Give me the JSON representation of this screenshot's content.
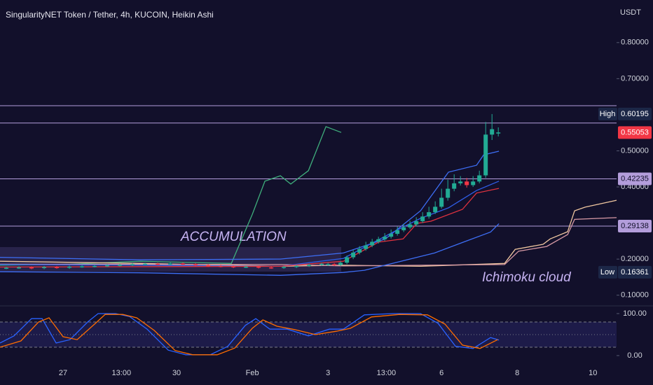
{
  "chart_data": [
    {
      "type": "candlestick",
      "title": "SingularityNET Token / Tether, 4h, KUCOIN, Heikin Ashi",
      "unit": "USDT",
      "annotations": [
        "ACCUMULATION",
        "Ichimoku cloud"
      ],
      "xlim": [
        -40,
        351
      ],
      "ylim": [
        0.08,
        0.918
      ],
      "yticks": [
        {
          "value": 0.8,
          "label": "0.80000"
        },
        {
          "value": 0.7,
          "label": "0.70000"
        },
        {
          "value": 0.5,
          "label": "0.50000"
        },
        {
          "value": 0.4,
          "label": "0.40000"
        },
        {
          "value": 0.2,
          "label": "0.20000"
        },
        {
          "value": 0.1,
          "label": "0.10000"
        }
      ],
      "xticks": [
        {
          "value": 0,
          "label": "27"
        },
        {
          "value": 37,
          "label": "13:00"
        },
        {
          "value": 72,
          "label": "30"
        },
        {
          "value": 120,
          "label": "Feb"
        },
        {
          "value": 168,
          "label": "3"
        },
        {
          "value": 205,
          "label": "13:00"
        },
        {
          "value": 240,
          "label": "6"
        },
        {
          "value": 288,
          "label": "8"
        },
        {
          "value": 336,
          "label": "10"
        }
      ],
      "up_color": "#22ab94",
      "down_color": "#f23645",
      "candles": {
        "x": [
          -36,
          -28,
          -20,
          -12,
          -4,
          4,
          12,
          20,
          28,
          36,
          44,
          52,
          60,
          68,
          76,
          84,
          92,
          100,
          108,
          116,
          124,
          132,
          140,
          148,
          156,
          164,
          168,
          172,
          176,
          180,
          184,
          188,
          192,
          196,
          200,
          204,
          208,
          212,
          216,
          220,
          224,
          228,
          232,
          236,
          240,
          244,
          248,
          252,
          256,
          260,
          264,
          268,
          272,
          276
        ],
        "open": [
          0.175,
          0.176,
          0.177,
          0.175,
          0.178,
          0.176,
          0.179,
          0.18,
          0.181,
          0.183,
          0.184,
          0.186,
          0.187,
          0.186,
          0.188,
          0.186,
          0.183,
          0.181,
          0.18,
          0.178,
          0.179,
          0.177,
          0.176,
          0.178,
          0.181,
          0.184,
          0.184,
          0.186,
          0.184,
          0.19,
          0.205,
          0.218,
          0.228,
          0.238,
          0.248,
          0.255,
          0.262,
          0.27,
          0.28,
          0.288,
          0.296,
          0.305,
          0.318,
          0.33,
          0.345,
          0.37,
          0.395,
          0.41,
          0.415,
          0.405,
          0.415,
          0.432,
          0.545,
          0.548
        ],
        "high": [
          0.179,
          0.18,
          0.18,
          0.181,
          0.181,
          0.182,
          0.183,
          0.184,
          0.186,
          0.187,
          0.189,
          0.19,
          0.19,
          0.191,
          0.191,
          0.189,
          0.186,
          0.184,
          0.183,
          0.182,
          0.182,
          0.18,
          0.181,
          0.184,
          0.187,
          0.19,
          0.19,
          0.189,
          0.194,
          0.21,
          0.225,
          0.236,
          0.248,
          0.256,
          0.262,
          0.272,
          0.282,
          0.29,
          0.298,
          0.306,
          0.316,
          0.33,
          0.345,
          0.36,
          0.395,
          0.42,
          0.435,
          0.43,
          0.425,
          0.43,
          0.445,
          0.58,
          0.60195,
          0.565
        ],
        "low": [
          0.172,
          0.173,
          0.172,
          0.172,
          0.173,
          0.173,
          0.176,
          0.177,
          0.178,
          0.18,
          0.181,
          0.183,
          0.183,
          0.183,
          0.183,
          0.18,
          0.178,
          0.177,
          0.175,
          0.175,
          0.174,
          0.173,
          0.173,
          0.175,
          0.178,
          0.181,
          0.181,
          0.181,
          0.181,
          0.186,
          0.2,
          0.213,
          0.223,
          0.233,
          0.243,
          0.25,
          0.257,
          0.265,
          0.275,
          0.283,
          0.291,
          0.3,
          0.312,
          0.325,
          0.34,
          0.362,
          0.388,
          0.404,
          0.398,
          0.4,
          0.41,
          0.425,
          0.53,
          0.54
        ],
        "close": [
          0.176,
          0.177,
          0.175,
          0.178,
          0.176,
          0.179,
          0.18,
          0.181,
          0.183,
          0.184,
          0.186,
          0.187,
          0.186,
          0.188,
          0.186,
          0.183,
          0.181,
          0.18,
          0.178,
          0.179,
          0.177,
          0.176,
          0.178,
          0.181,
          0.184,
          0.187,
          0.186,
          0.184,
          0.19,
          0.205,
          0.218,
          0.228,
          0.238,
          0.248,
          0.255,
          0.262,
          0.27,
          0.28,
          0.288,
          0.296,
          0.305,
          0.318,
          0.33,
          0.345,
          0.37,
          0.395,
          0.41,
          0.415,
          0.405,
          0.415,
          0.432,
          0.545,
          0.56,
          0.551
        ]
      },
      "series": [
        {
          "color": "#3fae7c",
          "x": [
            -40,
            4.4,
            48.9,
            106.7,
            120,
            128,
            137.8,
            144.4,
            155.6,
            166.7,
            176.4
          ],
          "values": [
            0.183,
            0.186,
            0.194,
            0.188,
            0.324,
            0.416,
            0.431,
            0.408,
            0.445,
            0.567,
            0.551
          ]
        },
        {
          "color": "#f0c7a0",
          "x": [
            -40,
            48.9,
            137.8,
            177.8,
            226.7,
            280,
            286.7,
            304.4,
            308.9,
            320,
            324.4,
            331.1,
            351
          ],
          "values": [
            0.194,
            0.188,
            0.18,
            0.183,
            0.18,
            0.188,
            0.227,
            0.241,
            0.256,
            0.276,
            0.334,
            0.344,
            0.363
          ]
        },
        {
          "color": "#d89aa6",
          "x": [
            -40,
            137.8,
            177.8,
            280,
            288.9,
            306.7,
            320,
            324.4,
            351
          ],
          "values": [
            0.186,
            0.185,
            0.181,
            0.185,
            0.222,
            0.235,
            0.268,
            0.31,
            0.315
          ]
        },
        {
          "color": "#3d6ef5",
          "x": [
            -40,
            48.9,
            137.8,
            177.8,
            204.4,
            226.7,
            244.4,
            262.2,
            266.7,
            276.4
          ],
          "values": [
            0.205,
            0.198,
            0.2,
            0.217,
            0.256,
            0.334,
            0.441,
            0.46,
            0.489,
            0.499
          ]
        },
        {
          "color": "#3d6ef5",
          "x": [
            -40,
            48.9,
            137.8,
            177.8,
            191.1,
            208.9,
            235.6,
            253.3,
            271.1,
            276.4
          ],
          "values": [
            0.165,
            0.162,
            0.155,
            0.163,
            0.169,
            0.188,
            0.217,
            0.246,
            0.275,
            0.298
          ]
        },
        {
          "color": "#2f5ee8",
          "x": [
            -40,
            48.9,
            137.8,
            177.8,
            208.9,
            226.7,
            244.4,
            262.2,
            276.4
          ],
          "values": [
            0.185,
            0.183,
            0.18,
            0.202,
            0.274,
            0.313,
            0.342,
            0.39,
            0.416
          ]
        },
        {
          "color": "#e0323f",
          "x": [
            -40,
            137.8,
            177.8,
            200,
            215.6,
            224.4,
            233.3,
            253.3,
            262.2,
            276.4
          ],
          "values": [
            0.178,
            0.18,
            0.194,
            0.247,
            0.256,
            0.299,
            0.305,
            0.338,
            0.383,
            0.396
          ]
        }
      ],
      "levels": [
        0.625,
        0.577,
        0.42235,
        0.29138
      ],
      "level_color": "#b39ddb",
      "markers": [
        {
          "name": "High",
          "value": 0.60195,
          "color": "#1c2747"
        },
        {
          "value": 0.55053,
          "color": "#f23645"
        },
        {
          "value": 0.42235,
          "color": "#b39ddb"
        },
        {
          "value": 0.29138,
          "color": "#b39ddb"
        },
        {
          "name": "Low",
          "value": 0.16361,
          "color": "#1c2747"
        }
      ]
    },
    {
      "type": "line",
      "xlim": [
        -40,
        351
      ],
      "ylim": [
        -11.7,
        113.3
      ],
      "yticks": [
        {
          "value": 100,
          "label": "100.00"
        },
        {
          "value": 0,
          "label": "0.00"
        }
      ],
      "bands": [
        20,
        80
      ],
      "midline": 50,
      "series": [
        {
          "color": "#2962ff",
          "x": [
            -40,
            -31.1,
            -20,
            -13.3,
            -4.4,
            4.4,
            15.6,
            22.2,
            33.3,
            42.2,
            53.3,
            66.7,
            77.8,
            93.3,
            104.4,
            115.6,
            122.2,
            131.1,
            142.2,
            155.6,
            168.9,
            177.8,
            191.1,
            208.9,
            226.7,
            237.8,
            248.9,
            260,
            271.1,
            276.4
          ],
          "values": [
            30,
            47,
            88,
            88,
            30,
            38,
            80,
            100,
            100,
            93,
            63,
            13,
            2,
            2,
            22,
            72,
            88,
            63,
            63,
            47,
            63,
            63,
            97,
            100,
            100,
            77,
            22,
            17,
            43,
            37
          ]
        },
        {
          "color": "#ff6d00",
          "x": [
            -40,
            -26.7,
            -15.6,
            -8.9,
            0,
            8.9,
            20,
            26.7,
            37.8,
            46.7,
            57.8,
            71.1,
            82.2,
            97.8,
            108.9,
            120,
            126.7,
            135.6,
            146.7,
            160,
            173.3,
            182.2,
            195.6,
            213.3,
            231.1,
            242.2,
            253.3,
            264.4,
            275.6
          ],
          "values": [
            20,
            35,
            80,
            90,
            45,
            38,
            75,
            98,
            98,
            90,
            60,
            12,
            2,
            2,
            18,
            65,
            85,
            70,
            62,
            50,
            58,
            65,
            92,
            98,
            97,
            75,
            25,
            17,
            38
          ]
        }
      ]
    }
  ]
}
